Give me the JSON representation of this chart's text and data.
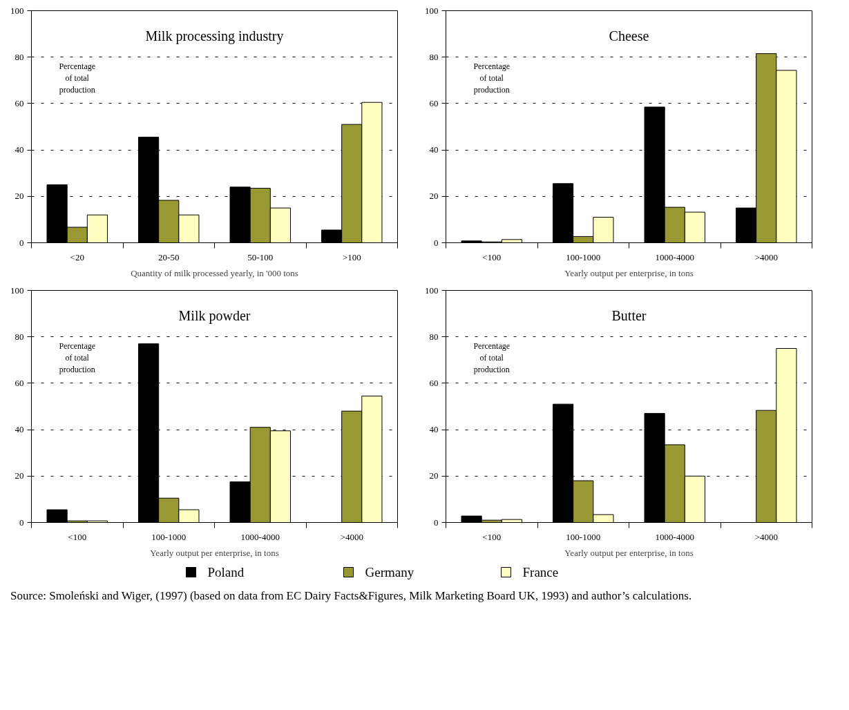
{
  "chart_data": [
    {
      "type": "bar",
      "title": "Milk processing industry",
      "xlabel": "Quantity of milk processed yearly, in '000 tons",
      "categories": [
        "<20",
        "20-50",
        "50-100",
        ">100"
      ],
      "ylim": [
        0,
        100
      ],
      "yticks": [
        0,
        20,
        40,
        60,
        80,
        100
      ],
      "grid": "y",
      "legend": "bottom",
      "annotations": [
        "Percentage\nof total\nproduction"
      ],
      "series": [
        {
          "name": "Poland",
          "color": "#000000",
          "values": [
            25,
            45.5,
            24,
            5.5
          ]
        },
        {
          "name": "Germany",
          "color": "#999933",
          "values": [
            6.7,
            18.3,
            23.5,
            51
          ]
        },
        {
          "name": "France",
          "color": "#ffffc0",
          "values": [
            12,
            12,
            15,
            60.5
          ]
        }
      ]
    },
    {
      "type": "bar",
      "title": "Cheese",
      "xlabel": "Yearly output per enterprise, in tons",
      "categories": [
        "<100",
        "100-1000",
        "1000-4000",
        ">4000"
      ],
      "ylim": [
        0,
        100
      ],
      "yticks": [
        0,
        20,
        40,
        60,
        80,
        100
      ],
      "grid": "y",
      "annotations": [
        "Percentage\nof total\nproduction"
      ],
      "series": [
        {
          "color": "#000000",
          "values": [
            0.8,
            25.5,
            58.5,
            15
          ]
        },
        {
          "color": "#999933",
          "values": [
            0.4,
            2.7,
            15.3,
            81.5
          ]
        },
        {
          "color": "#ffffc0",
          "values": [
            1.4,
            11,
            13.2,
            74.3
          ]
        }
      ]
    },
    {
      "type": "bar",
      "title": "Milk powder",
      "xlabel": "Yearly output per enterprise, in tons",
      "categories": [
        "<100",
        "100-1000",
        "1000-4000",
        ">4000"
      ],
      "ylim": [
        0,
        100
      ],
      "yticks": [
        0,
        20,
        40,
        60,
        80,
        100
      ],
      "grid": "y",
      "annotations": [
        "Percentage\nof total\nproduction"
      ],
      "series": [
        {
          "color": "#000000",
          "values": [
            5.5,
            77,
            17.5,
            null
          ]
        },
        {
          "color": "#999933",
          "values": [
            0.7,
            10.5,
            41,
            48
          ]
        },
        {
          "color": "#ffffc0",
          "values": [
            0.7,
            5.5,
            39.5,
            54.5
          ]
        }
      ]
    },
    {
      "type": "bar",
      "title": "Butter",
      "xlabel": "Yearly output per enterprise, in tons",
      "categories": [
        "<100",
        "100-1000",
        "1000-4000",
        ">4000"
      ],
      "ylim": [
        0,
        100
      ],
      "yticks": [
        0,
        20,
        40,
        60,
        80,
        100
      ],
      "grid": "y",
      "annotations": [
        "Percentage\nof total\nproduction",
        "Source: Smoleński and Wiger, (1997) (based on data from EC Dairy Facts&Figures, Milk Marketing Board UK, 1993) and author’s calculations."
      ],
      "series": [
        {
          "color": "#000000",
          "values": [
            2.8,
            51,
            47,
            null
          ]
        },
        {
          "color": "#999933",
          "values": [
            1,
            18,
            33.5,
            48.3
          ]
        },
        {
          "color": "#ffffc0",
          "values": [
            1.3,
            3.4,
            20,
            75
          ]
        }
      ]
    }
  ]
}
